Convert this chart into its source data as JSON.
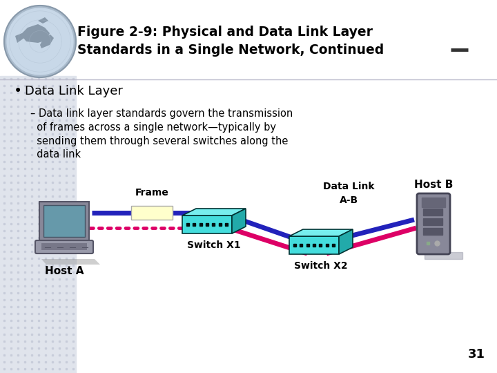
{
  "title_line1": "Figure 2-9: Physical and Data Link Layer",
  "title_line2": "Standards in a Single Network, Continued",
  "bullet_main": "Data Link Layer",
  "sub_line1": "– Data link layer standards govern the transmission",
  "sub_line2": "  of frames across a single network—typically by",
  "sub_line3": "  sending them through several switches along the",
  "sub_line4": "  data link",
  "bg_color": "#ffffff",
  "header_bg": "#ffffff",
  "grid_color": "#c8ccd8",
  "frame_label": "Frame",
  "data_link_label": "Data Link\nA-B",
  "host_a_label": "Host A",
  "host_b_label": "Host B",
  "switch_x1_label": "Switch X1",
  "switch_x2_label": "Switch X2",
  "page_number": "31",
  "blue_line_color": "#2222bb",
  "pink_line_color": "#dd0066",
  "frame_box_color": "#ffffcc",
  "switch_color": "#44dddd",
  "switch_top_color": "#77eeee",
  "switch_side_color": "#22aaaa",
  "switch_dark": "#003333"
}
